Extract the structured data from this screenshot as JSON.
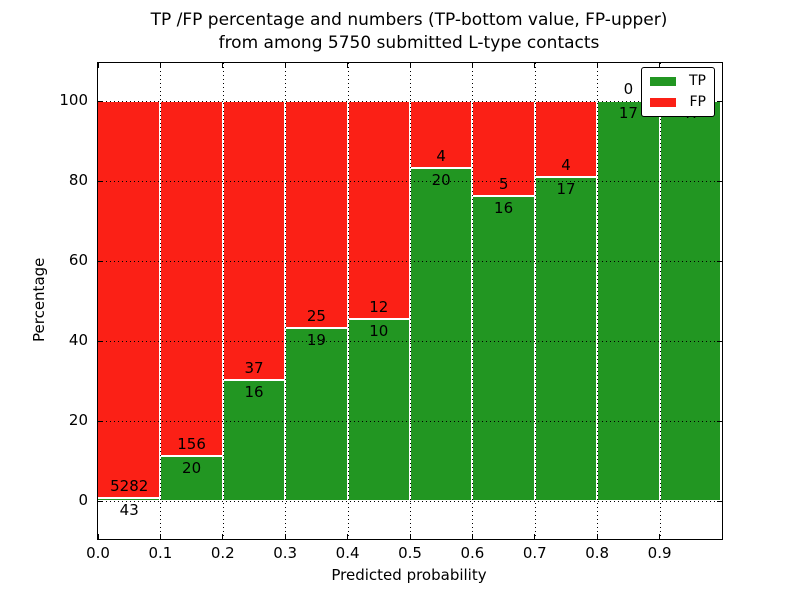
{
  "figure": {
    "title_line1": "TP /FP percentage and numbers (TP-bottom value, FP-upper)",
    "title_line2": "from among 5750 submitted L-type contacts"
  },
  "axes": {
    "xlabel": "Predicted probability",
    "ylabel": "Percentage",
    "x_tick_labels": [
      "0.0",
      "0.1",
      "0.2",
      "0.3",
      "0.4",
      "0.5",
      "0.6",
      "0.7",
      "0.8",
      "0.9"
    ],
    "y_tick_labels": [
      "0",
      "20",
      "40",
      "60",
      "80",
      "100"
    ]
  },
  "legend": {
    "items": [
      {
        "label": "TP",
        "color": "#229622"
      },
      {
        "label": "FP",
        "color": "#fb2016"
      }
    ]
  },
  "chart_data": {
    "type": "bar",
    "stacked": true,
    "orientation": "vertical",
    "title": "TP /FP percentage and numbers (TP-bottom value, FP-upper) from among 5750 submitted L-type contacts",
    "xlabel": "Predicted probability",
    "ylabel": "Percentage",
    "total_submitted_contacts": 5750,
    "bin_edges": [
      0.0,
      0.1,
      0.2,
      0.3,
      0.4,
      0.5,
      0.6,
      0.7,
      0.8,
      0.9,
      1.0
    ],
    "xlim": [
      0.0,
      1.0
    ],
    "ylim": [
      -9.5,
      109.5
    ],
    "y_ticks": [
      0,
      20,
      40,
      60,
      80,
      100
    ],
    "grid": {
      "style": "dotted",
      "axes": "both"
    },
    "legend_position": "upper right",
    "series": [
      {
        "name": "TP",
        "color": "#229622",
        "stack_order": "bottom",
        "counts": [
          43,
          20,
          16,
          19,
          10,
          20,
          16,
          17,
          17,
          47
        ],
        "count_labels": [
          "43",
          "20",
          "16",
          "19",
          "10",
          "20",
          "16",
          "17",
          "17",
          "47"
        ]
      },
      {
        "name": "FP",
        "color": "#fb2016",
        "stack_order": "top",
        "counts": [
          5282,
          156,
          37,
          25,
          12,
          4,
          5,
          4,
          0,
          0
        ],
        "count_labels": [
          "5282",
          "156",
          "37",
          "25",
          "12",
          "4",
          "5",
          "4",
          "0",
          ""
        ]
      }
    ],
    "tp_percent_of_bin": [
      0.81,
      11.36,
      30.19,
      43.18,
      45.45,
      83.33,
      76.19,
      80.95,
      100.0,
      100.0
    ]
  }
}
